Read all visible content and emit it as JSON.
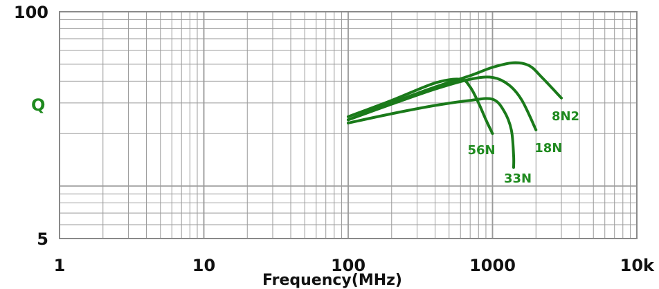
{
  "chart_data": {
    "type": "line",
    "title": "",
    "xlabel": "Frequency(MHz)",
    "ylabel": "Q",
    "x_scale": "log",
    "y_scale": "log",
    "xlim": [
      1,
      10000
    ],
    "ylim": [
      5,
      100
    ],
    "x_tick_labels": [
      "1",
      "10",
      "100",
      "1000",
      "10k"
    ],
    "y_tick_labels": [
      "100",
      "5"
    ],
    "grid": true,
    "series": [
      {
        "name": "8N2",
        "x": [
          100,
          200,
          400,
          700,
          1000,
          1400,
          1800,
          2200,
          3000
        ],
        "y": [
          24,
          30,
          37,
          43,
          48,
          51,
          49,
          42,
          32
        ]
      },
      {
        "name": "18N",
        "x": [
          100,
          200,
          400,
          700,
          1000,
          1300,
          1600,
          2000
        ],
        "y": [
          24,
          29.5,
          36,
          41,
          42,
          38,
          31,
          21
        ]
      },
      {
        "name": "56N",
        "x": [
          100,
          200,
          400,
          600,
          700,
          800,
          900,
          1000
        ],
        "y": [
          25,
          31,
          39,
          41,
          37,
          30,
          24,
          20
        ]
      },
      {
        "name": "33N",
        "x": [
          100,
          200,
          400,
          700,
          1000,
          1200,
          1350,
          1400,
          1400
        ],
        "y": [
          23,
          26,
          29,
          31,
          31.5,
          27,
          21,
          15,
          12.8
        ]
      }
    ]
  },
  "colors": {
    "curve": "#1a7a1a",
    "label": "#1f8a1f",
    "grid": "#9a9a9a",
    "frame": "#8a8a8a"
  }
}
